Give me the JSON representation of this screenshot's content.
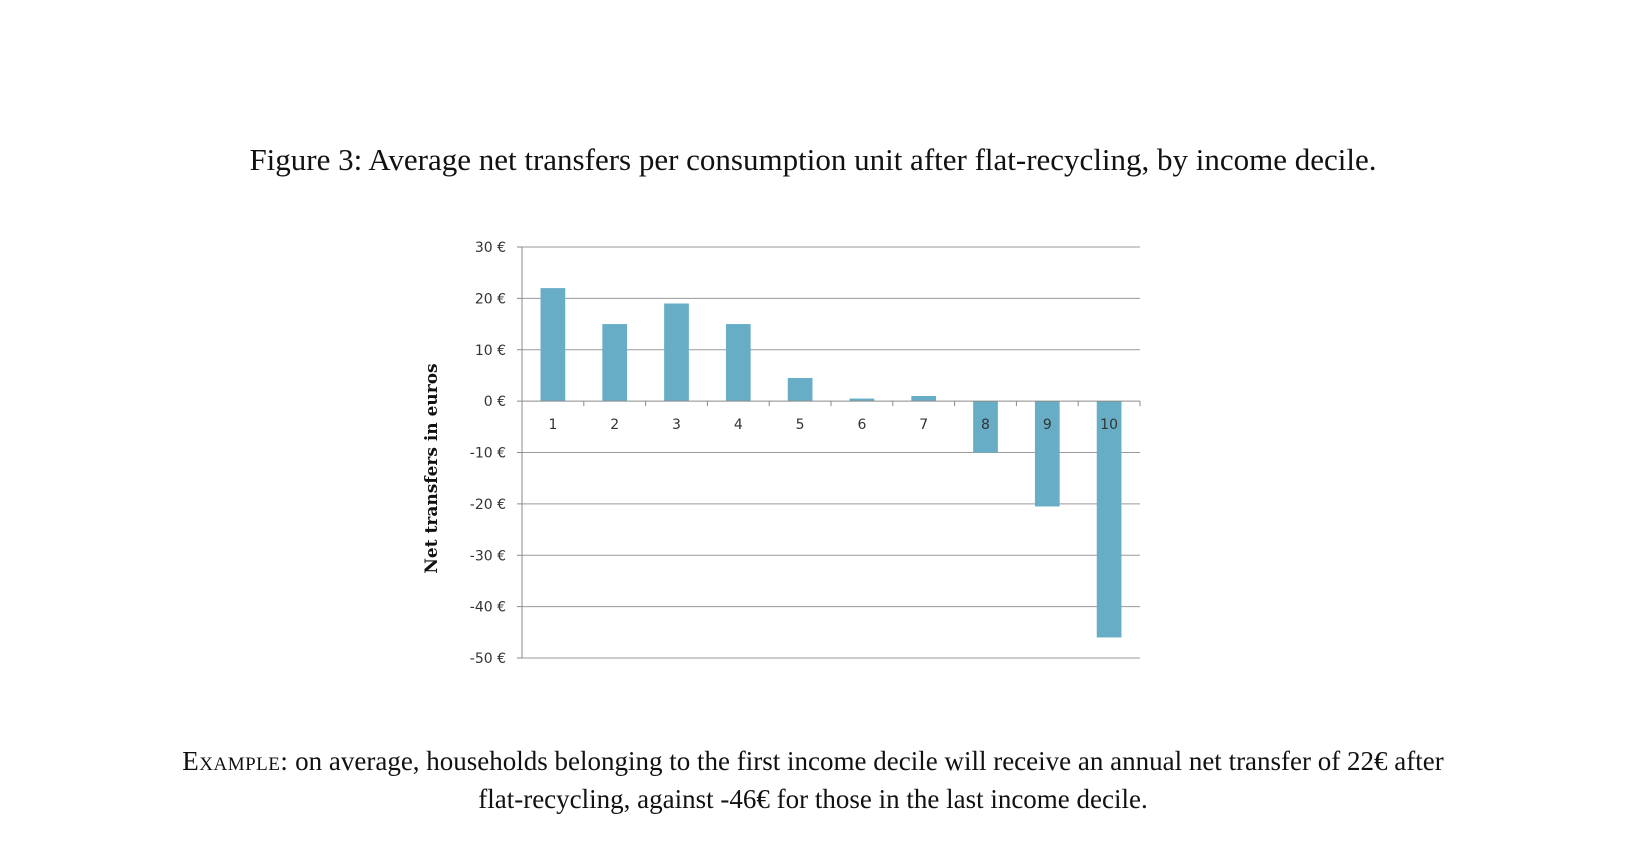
{
  "caption": {
    "label": "Figure 3:",
    "text": "Average net transfers per consumption unit after flat-recycling, by income decile."
  },
  "chart_data": {
    "type": "bar",
    "categories": [
      "1",
      "2",
      "3",
      "4",
      "5",
      "6",
      "7",
      "8",
      "9",
      "10"
    ],
    "values": [
      22,
      15,
      19,
      15,
      4.5,
      0.5,
      1,
      -10,
      -20.5,
      -46
    ],
    "ylabel": "Net transfers in euros",
    "xlabel": "",
    "ylim": [
      -50,
      30
    ],
    "yticks": [
      30,
      20,
      10,
      0,
      -10,
      -20,
      -30,
      -40,
      -50
    ],
    "ytick_labels": [
      "30 €",
      "20 €",
      "10 €",
      "0 €",
      "-10 €",
      "-20 €",
      "-30 €",
      "-40 €",
      "-50 €"
    ],
    "grid": true,
    "legend": "none",
    "bar_color": "#67adc6"
  },
  "note": {
    "lead": "Example:",
    "text": "on average, households belonging to the first income decile will receive an annual net transfer of 22€ after flat-recycling, against -46€ for those in the last income decile."
  }
}
